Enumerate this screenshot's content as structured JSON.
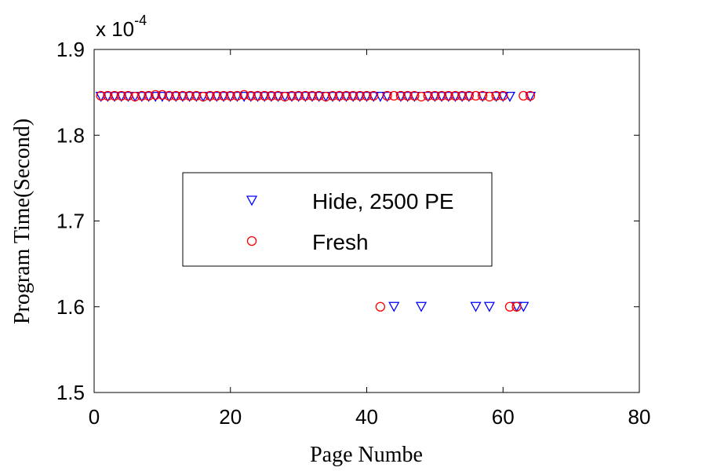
{
  "chart_data": {
    "type": "scatter",
    "title": "",
    "xlabel": "Page Numbe",
    "ylabel": "Program Time(Second)",
    "xlim": [
      0,
      80
    ],
    "ylim": [
      1.5,
      1.9
    ],
    "x_ticks": [
      0,
      20,
      40,
      60,
      80
    ],
    "y_ticks": [
      1.5,
      1.6,
      1.7,
      1.8,
      1.9
    ],
    "x_tick_labels": [
      "0",
      "20",
      "40",
      "60",
      "80"
    ],
    "y_tick_labels": [
      "1.5",
      "1.6",
      "1.7",
      "1.8",
      "1.9"
    ],
    "y_multiplier": {
      "base": "x 10",
      "exponent": "-4"
    },
    "grid": false,
    "legend_placement": "center-left",
    "series": [
      {
        "name": "Hide, 2500 PE",
        "marker": "triangle-down",
        "color": "#0000ff",
        "x": [
          1,
          2,
          3,
          4,
          5,
          6,
          7,
          8,
          9,
          10,
          11,
          12,
          13,
          14,
          15,
          16,
          17,
          18,
          19,
          20,
          21,
          22,
          23,
          24,
          25,
          26,
          27,
          28,
          29,
          30,
          31,
          32,
          33,
          34,
          35,
          36,
          37,
          38,
          39,
          40,
          41,
          42,
          43,
          44,
          45,
          46,
          47,
          48,
          49,
          50,
          51,
          52,
          53,
          54,
          55,
          56,
          57,
          58,
          59,
          60,
          61,
          62,
          63,
          64
        ],
        "y": [
          1.845,
          1.845,
          1.845,
          1.845,
          1.845,
          1.845,
          1.845,
          1.845,
          1.845,
          1.845,
          1.845,
          1.845,
          1.845,
          1.845,
          1.845,
          1.845,
          1.845,
          1.845,
          1.845,
          1.845,
          1.845,
          1.845,
          1.845,
          1.845,
          1.845,
          1.845,
          1.845,
          1.845,
          1.845,
          1.845,
          1.845,
          1.845,
          1.845,
          1.845,
          1.845,
          1.845,
          1.845,
          1.845,
          1.845,
          1.845,
          1.845,
          1.845,
          1.845,
          1.6,
          1.845,
          1.845,
          1.845,
          1.6,
          1.845,
          1.845,
          1.845,
          1.845,
          1.845,
          1.845,
          1.845,
          1.6,
          1.845,
          1.6,
          1.845,
          1.845,
          1.845,
          1.6,
          1.6,
          1.845
        ]
      },
      {
        "name": "Fresh",
        "marker": "circle",
        "color": "#ff0000",
        "x": [
          1,
          2,
          3,
          4,
          5,
          6,
          7,
          8,
          9,
          10,
          11,
          12,
          13,
          14,
          15,
          16,
          17,
          18,
          19,
          20,
          21,
          22,
          23,
          24,
          25,
          26,
          27,
          28,
          29,
          30,
          31,
          32,
          33,
          34,
          35,
          36,
          37,
          38,
          39,
          40,
          41,
          42,
          43,
          44,
          45,
          46,
          47,
          48,
          49,
          50,
          51,
          52,
          53,
          54,
          55,
          56,
          57,
          58,
          59,
          60,
          61,
          62,
          63,
          64
        ],
        "y": [
          1.846,
          1.846,
          1.846,
          1.846,
          1.846,
          1.845,
          1.846,
          1.846,
          1.847,
          1.847,
          1.846,
          1.846,
          1.846,
          1.846,
          1.846,
          1.845,
          1.846,
          1.846,
          1.846,
          1.846,
          1.846,
          1.847,
          1.846,
          1.846,
          1.846,
          1.846,
          1.846,
          1.845,
          1.846,
          1.846,
          1.846,
          1.846,
          1.846,
          1.845,
          1.846,
          1.846,
          1.846,
          1.846,
          1.846,
          1.846,
          1.846,
          1.6,
          1.846,
          1.846,
          1.846,
          1.846,
          1.846,
          1.845,
          1.846,
          1.846,
          1.846,
          1.846,
          1.846,
          1.846,
          1.846,
          1.846,
          1.846,
          1.845,
          1.846,
          1.846,
          1.6,
          1.6,
          1.846,
          1.846
        ]
      }
    ]
  }
}
